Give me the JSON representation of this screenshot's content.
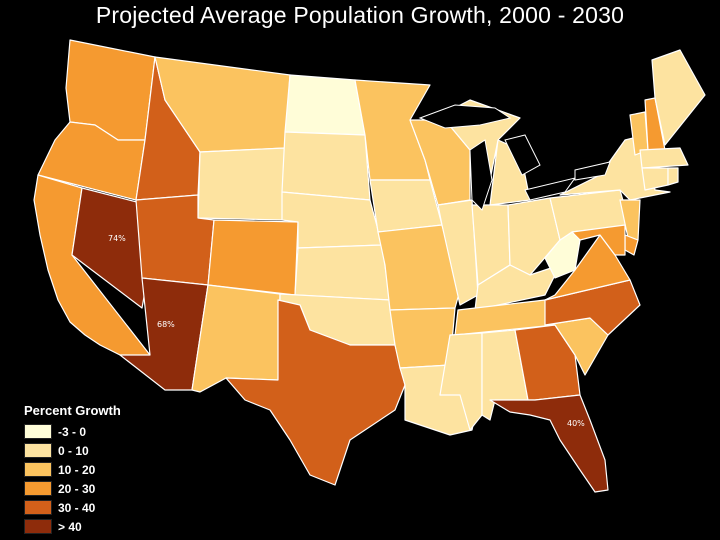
{
  "title": "Projected Average Population Growth, 2000 - 2030",
  "colors": {
    "background": "#000000",
    "class_neg": "#fffdd8",
    "class_0_10": "#fde3a0",
    "class_10_20": "#fbc35f",
    "class_20_30": "#f59a30",
    "class_30_40": "#d2601a",
    "class_40_plus": "#8e2c0b"
  },
  "legend": {
    "title": "Percent Growth",
    "items": [
      {
        "label": "-3 - 0",
        "color": "#fffdd8"
      },
      {
        "label": "0 - 10",
        "color": "#fde3a0"
      },
      {
        "label": "10 - 20",
        "color": "#fbc35f"
      },
      {
        "label": "20 - 30",
        "color": "#f59a30"
      },
      {
        "label": "30 - 40",
        "color": "#d2601a"
      },
      {
        "label": "> 40",
        "color": "#8e2c0b"
      }
    ]
  },
  "annotations": {
    "nevada": "74%",
    "arizona": "68%",
    "florida": "40%"
  },
  "states": {
    "WA": "20-30",
    "OR": "20-30",
    "CA": "20-30",
    "ID": "30-40",
    "NV": ">40",
    "AZ": ">40",
    "UT": "30-40",
    "MT": "10-20",
    "WY": "0-10",
    "CO": "20-30",
    "NM": "10-20",
    "ND": "-3-0",
    "SD": "0-10",
    "NE": "0-10",
    "KS": "0-10",
    "OK": "0-10",
    "TX": "30-40",
    "MN": "10-20",
    "IA": "0-10",
    "MO": "10-20",
    "AR": "10-20",
    "LA": "0-10",
    "WI": "10-20",
    "IL": "0-10",
    "MS": "0-10",
    "MI": "0-10",
    "IN": "0-10",
    "KY": "0-10",
    "TN": "10-20",
    "AL": "0-10",
    "OH": "0-10",
    "GA": "30-40",
    "FL": ">40",
    "SC": "10-20",
    "NC": "30-40",
    "VA": "20-30",
    "WV": "-3-0",
    "PA": "0-10",
    "NY": "0-10",
    "ME": "0-10",
    "NH": "20-30",
    "VT": "10-20",
    "MA": "0-10",
    "CT": "0-10",
    "RI": "0-10",
    "NJ": "10-20",
    "DE": "20-30",
    "MD": "20-30"
  }
}
